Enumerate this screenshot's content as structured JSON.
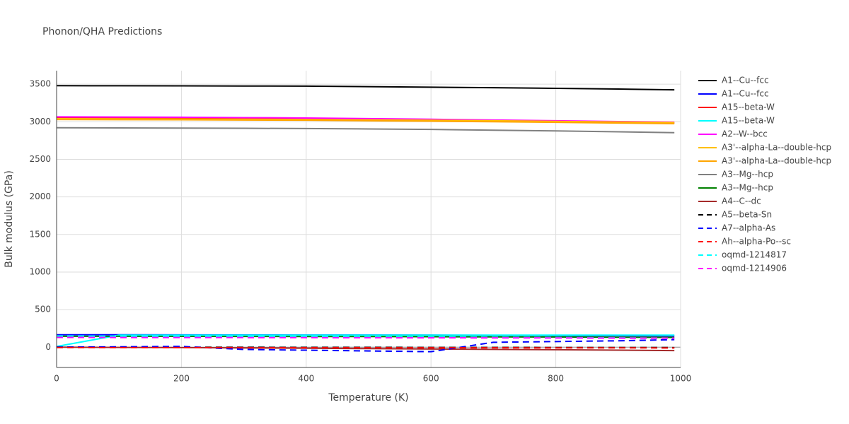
{
  "chart_data": {
    "type": "line",
    "title": "Phonon/QHA Predictions",
    "x_label": "Temperature (K)",
    "y_label": "Bulk modulus (GPa)",
    "xlim": [
      0,
      1000
    ],
    "xticks": [
      0,
      200,
      400,
      600,
      800,
      1000
    ],
    "ylim": [
      -270,
      3680
    ],
    "yticks": [
      0,
      500,
      1000,
      1500,
      2000,
      2500,
      3000,
      3500
    ],
    "grid": true,
    "legend": "right",
    "x": [
      0,
      100,
      200,
      300,
      400,
      500,
      600,
      700,
      800,
      900,
      990
    ],
    "series": [
      {
        "name": "A1--Cu--fcc",
        "color": "#000000",
        "line_style": "solid",
        "values": [
          3480,
          3479,
          3478,
          3476,
          3474,
          3467,
          3460,
          3453,
          3445,
          3435,
          3425
        ]
      },
      {
        "name": "A1--Cu--fcc",
        "color": "#0000ff",
        "line_style": "solid",
        "values": [
          165,
          165,
          164,
          163,
          162,
          161,
          160,
          158,
          156,
          153,
          150
        ]
      },
      {
        "name": "A15--beta-W",
        "color": "#ff0000",
        "line_style": "solid",
        "values": [
          3055,
          3053,
          3050,
          3045,
          3040,
          3032,
          3025,
          3015,
          3005,
          2995,
          2985
        ]
      },
      {
        "name": "A15--beta-W",
        "color": "#00ffff",
        "line_style": "solid",
        "values": [
          10,
          160,
          160,
          160,
          160,
          160,
          160,
          160,
          160,
          160,
          160
        ]
      },
      {
        "name": "A2--W--bcc",
        "color": "#ff00ff",
        "line_style": "solid",
        "values": [
          3065,
          3063,
          3060,
          3055,
          3050,
          3042,
          3033,
          3023,
          3013,
          3003,
          2995
        ]
      },
      {
        "name": "A3'--alpha-La--double-hcp",
        "color": "#ffc000",
        "line_style": "solid",
        "values": [
          3040,
          3038,
          3036,
          3033,
          3030,
          3025,
          3020,
          3013,
          3005,
          2997,
          2990
        ]
      },
      {
        "name": "A3'--alpha-La--double-hcp",
        "color": "#ffa500",
        "line_style": "solid",
        "values": [
          3030,
          3028,
          3026,
          3023,
          3020,
          3014,
          3008,
          3000,
          2992,
          2983,
          2975
        ]
      },
      {
        "name": "A3--Mg--hcp",
        "color": "#808080",
        "line_style": "solid",
        "values": [
          2920,
          2918,
          2916,
          2913,
          2910,
          2904,
          2898,
          2888,
          2878,
          2867,
          2855
        ]
      },
      {
        "name": "A3--Mg--hcp",
        "color": "#008000",
        "line_style": "solid",
        "values": [
          145,
          145,
          144,
          143,
          142,
          141,
          139,
          137,
          135,
          132,
          130
        ]
      },
      {
        "name": "A4--C--dc",
        "color": "#a52a2a",
        "line_style": "solid",
        "values": [
          0,
          -3,
          -6,
          -10,
          -14,
          -19,
          -24,
          -29,
          -34,
          -40,
          -45
        ]
      },
      {
        "name": "A5--beta-Sn",
        "color": "#000000",
        "line_style": "dash",
        "values": [
          0,
          0,
          -1,
          -1,
          -2,
          -2,
          -3,
          -3,
          -4,
          -4,
          -5
        ]
      },
      {
        "name": "A7--alpha-As",
        "color": "#0000ff",
        "line_style": "dash",
        "values": [
          0,
          5,
          10,
          -30,
          -40,
          -50,
          -60,
          65,
          75,
          85,
          100
        ]
      },
      {
        "name": "Ah--alpha-Po--sc",
        "color": "#ff0000",
        "line_style": "dash",
        "values": [
          -5,
          -5,
          -6,
          -6,
          -7,
          -7,
          -8,
          -8,
          -9,
          -9,
          -10
        ]
      },
      {
        "name": "oqmd-1214817",
        "color": "#00ffff",
        "line_style": "dash",
        "values": [
          150,
          148,
          146,
          144,
          141,
          138,
          135,
          131,
          128,
          124,
          120
        ]
      },
      {
        "name": "oqmd-1214906",
        "color": "#ff00ff",
        "line_style": "dash",
        "values": [
          130,
          129,
          129,
          128,
          127,
          126,
          125,
          124,
          123,
          121,
          120
        ]
      }
    ]
  }
}
